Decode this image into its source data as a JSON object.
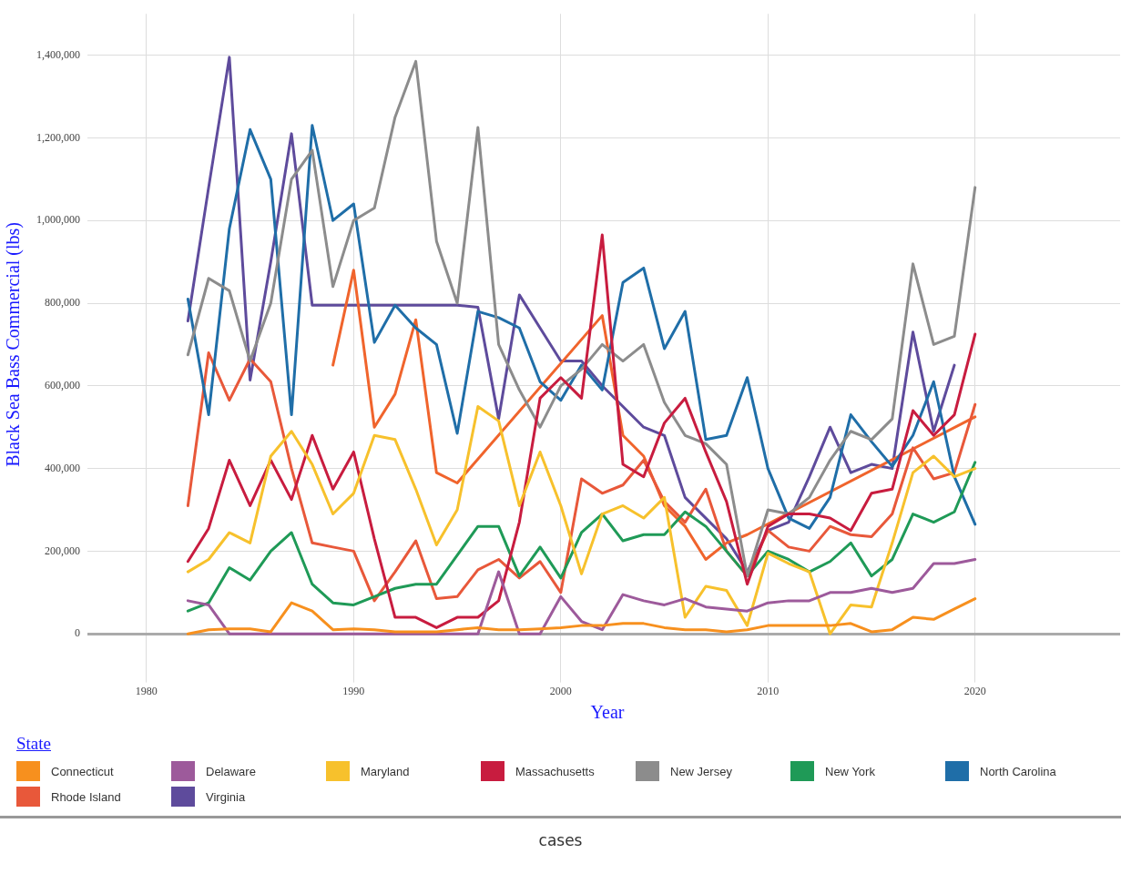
{
  "chart_data": {
    "type": "line",
    "xlabel": "Year",
    "ylabel": "Black Sea Bass Commercial (lbs)",
    "legend_title": "State",
    "legend": "bottom",
    "grid": true,
    "marker": "none",
    "line_style": "solid",
    "x": [
      1982,
      1983,
      1984,
      1985,
      1986,
      1987,
      1988,
      1989,
      1990,
      1991,
      1992,
      1993,
      1994,
      1995,
      1996,
      1997,
      1998,
      1999,
      2000,
      2001,
      2002,
      2003,
      2004,
      2005,
      2006,
      2007,
      2008,
      2009,
      2010,
      2011,
      2012,
      2013,
      2014,
      2015,
      2016,
      2017,
      2018,
      2019,
      2020
    ],
    "xlim": [
      1977.5,
      2027
    ],
    "xticks": [
      1980,
      1990,
      2000,
      2010,
      2020
    ],
    "ylim": [
      -100000,
      1500000
    ],
    "yticks": [
      {
        "value": 0,
        "label": "0"
      },
      {
        "value": 200000,
        "label": "200,000"
      },
      {
        "value": 400000,
        "label": "400,000"
      },
      {
        "value": 600000,
        "label": "600,000"
      },
      {
        "value": 800000,
        "label": "800,000"
      },
      {
        "value": 1000000,
        "label": "1,000,000"
      },
      {
        "value": 1200000,
        "label": "1,200,000"
      },
      {
        "value": 1400000,
        "label": "1,400,000"
      }
    ],
    "series": [
      {
        "name": "Connecticut",
        "color": "#f7901e",
        "values": [
          0,
          10000,
          12000,
          12000,
          5000,
          75000,
          55000,
          10000,
          12000,
          10000,
          5000,
          5000,
          5000,
          10000,
          15000,
          10000,
          10000,
          12000,
          15000,
          20000,
          20000,
          25000,
          25000,
          15000,
          10000,
          10000,
          5000,
          10000,
          20000,
          20000,
          20000,
          20000,
          25000,
          5000,
          10000,
          40000,
          35000,
          60000,
          85000
        ]
      },
      {
        "name": "Delaware",
        "color": "#9d5a9b",
        "values": [
          80000,
          70000,
          0,
          0,
          0,
          0,
          0,
          0,
          0,
          0,
          0,
          0,
          0,
          0,
          0,
          150000,
          0,
          0,
          90000,
          30000,
          10000,
          95000,
          80000,
          70000,
          85000,
          65000,
          60000,
          55000,
          75000,
          80000,
          80000,
          100000,
          100000,
          110000,
          100000,
          110000,
          170000,
          170000,
          180000
        ]
      },
      {
        "name": "Maryland",
        "color": "#f7c12c",
        "values": [
          150000,
          180000,
          245000,
          220000,
          430000,
          490000,
          410000,
          290000,
          340000,
          480000,
          470000,
          350000,
          215000,
          300000,
          550000,
          515000,
          310000,
          440000,
          310000,
          145000,
          290000,
          310000,
          280000,
          330000,
          40000,
          115000,
          105000,
          20000,
          195000,
          170000,
          150000,
          0,
          70000,
          65000,
          220000,
          390000,
          430000,
          380000,
          400000
        ]
      },
      {
        "name": "Massachusetts",
        "color": "#c81c3f",
        "values": [
          175000,
          255000,
          420000,
          310000,
          420000,
          325000,
          480000,
          350000,
          440000,
          230000,
          40000,
          40000,
          15000,
          40000,
          40000,
          80000,
          270000,
          570000,
          620000,
          570000,
          965000,
          410000,
          380000,
          510000,
          570000,
          440000,
          320000,
          120000,
          260000,
          290000,
          290000,
          280000,
          250000,
          340000,
          350000,
          540000,
          480000,
          530000,
          725000
        ]
      },
      {
        "name": "New Jersey",
        "color": "#8c8c8c",
        "values": [
          675000,
          860000,
          830000,
          660000,
          800000,
          1100000,
          1170000,
          840000,
          1000000,
          1030000,
          1250000,
          1385000,
          950000,
          800000,
          1225000,
          700000,
          590000,
          500000,
          600000,
          640000,
          700000,
          660000,
          700000,
          560000,
          480000,
          460000,
          410000,
          140000,
          300000,
          290000,
          330000,
          420000,
          490000,
          470000,
          520000,
          895000,
          700000,
          720000,
          1080000
        ]
      },
      {
        "name": "New York",
        "color": "#1f9a57",
        "values": [
          55000,
          75000,
          160000,
          130000,
          200000,
          245000,
          120000,
          75000,
          70000,
          90000,
          110000,
          120000,
          120000,
          190000,
          260000,
          260000,
          140000,
          210000,
          135000,
          245000,
          290000,
          225000,
          240000,
          240000,
          295000,
          260000,
          200000,
          140000,
          200000,
          180000,
          150000,
          175000,
          220000,
          140000,
          180000,
          290000,
          270000,
          295000,
          415000
        ]
      },
      {
        "name": "North Carolina",
        "color": "#1f6ea8",
        "values": [
          810000,
          530000,
          980000,
          1220000,
          1100000,
          530000,
          1230000,
          1000000,
          1040000,
          705000,
          795000,
          740000,
          700000,
          485000,
          780000,
          765000,
          740000,
          610000,
          565000,
          650000,
          590000,
          850000,
          885000,
          690000,
          780000,
          470000,
          480000,
          620000,
          400000,
          280000,
          255000,
          330000,
          530000,
          465000,
          405000,
          480000,
          610000,
          380000,
          265000
        ]
      },
      {
        "name": "Rhode Island",
        "color": "#e8583a",
        "values": [
          310000,
          680000,
          565000,
          665000,
          610000,
          400000,
          220000,
          210000,
          200000,
          80000,
          150000,
          225000,
          85000,
          90000,
          155000,
          180000,
          135000,
          175000,
          100000,
          375000,
          340000,
          360000,
          420000,
          320000,
          270000,
          350000,
          200000,
          140000,
          250000,
          210000,
          200000,
          260000,
          240000,
          235000,
          290000,
          450000,
          375000,
          390000,
          555000
        ]
      },
      {
        "color": "#f0642c",
        "values": [
          null,
          null,
          null,
          null,
          null,
          null,
          null,
          650000,
          880000,
          500000,
          580000,
          760000,
          390000,
          365000,
          null,
          null,
          null,
          null,
          null,
          null,
          770000,
          480000,
          430000,
          310000,
          260000,
          180000,
          220000,
          240000,
          null,
          null,
          null,
          null,
          null,
          null,
          null,
          null,
          null,
          null,
          525000
        ]
      },
      {
        "name": "Virginia",
        "color": "#5e4b9c",
        "values": [
          757000,
          1080000,
          1395000,
          614000,
          900000,
          1210000,
          795000,
          795000,
          795000,
          795000,
          795000,
          795000,
          795000,
          795000,
          790000,
          520000,
          820000,
          740000,
          660000,
          660000,
          600000,
          550000,
          500000,
          480000,
          330000,
          280000,
          230000,
          150000,
          250000,
          270000,
          380000,
          500000,
          390000,
          410000,
          400000,
          730000,
          490000,
          650000,
          null
        ]
      }
    ],
    "annotations": [
      "cases"
    ]
  }
}
